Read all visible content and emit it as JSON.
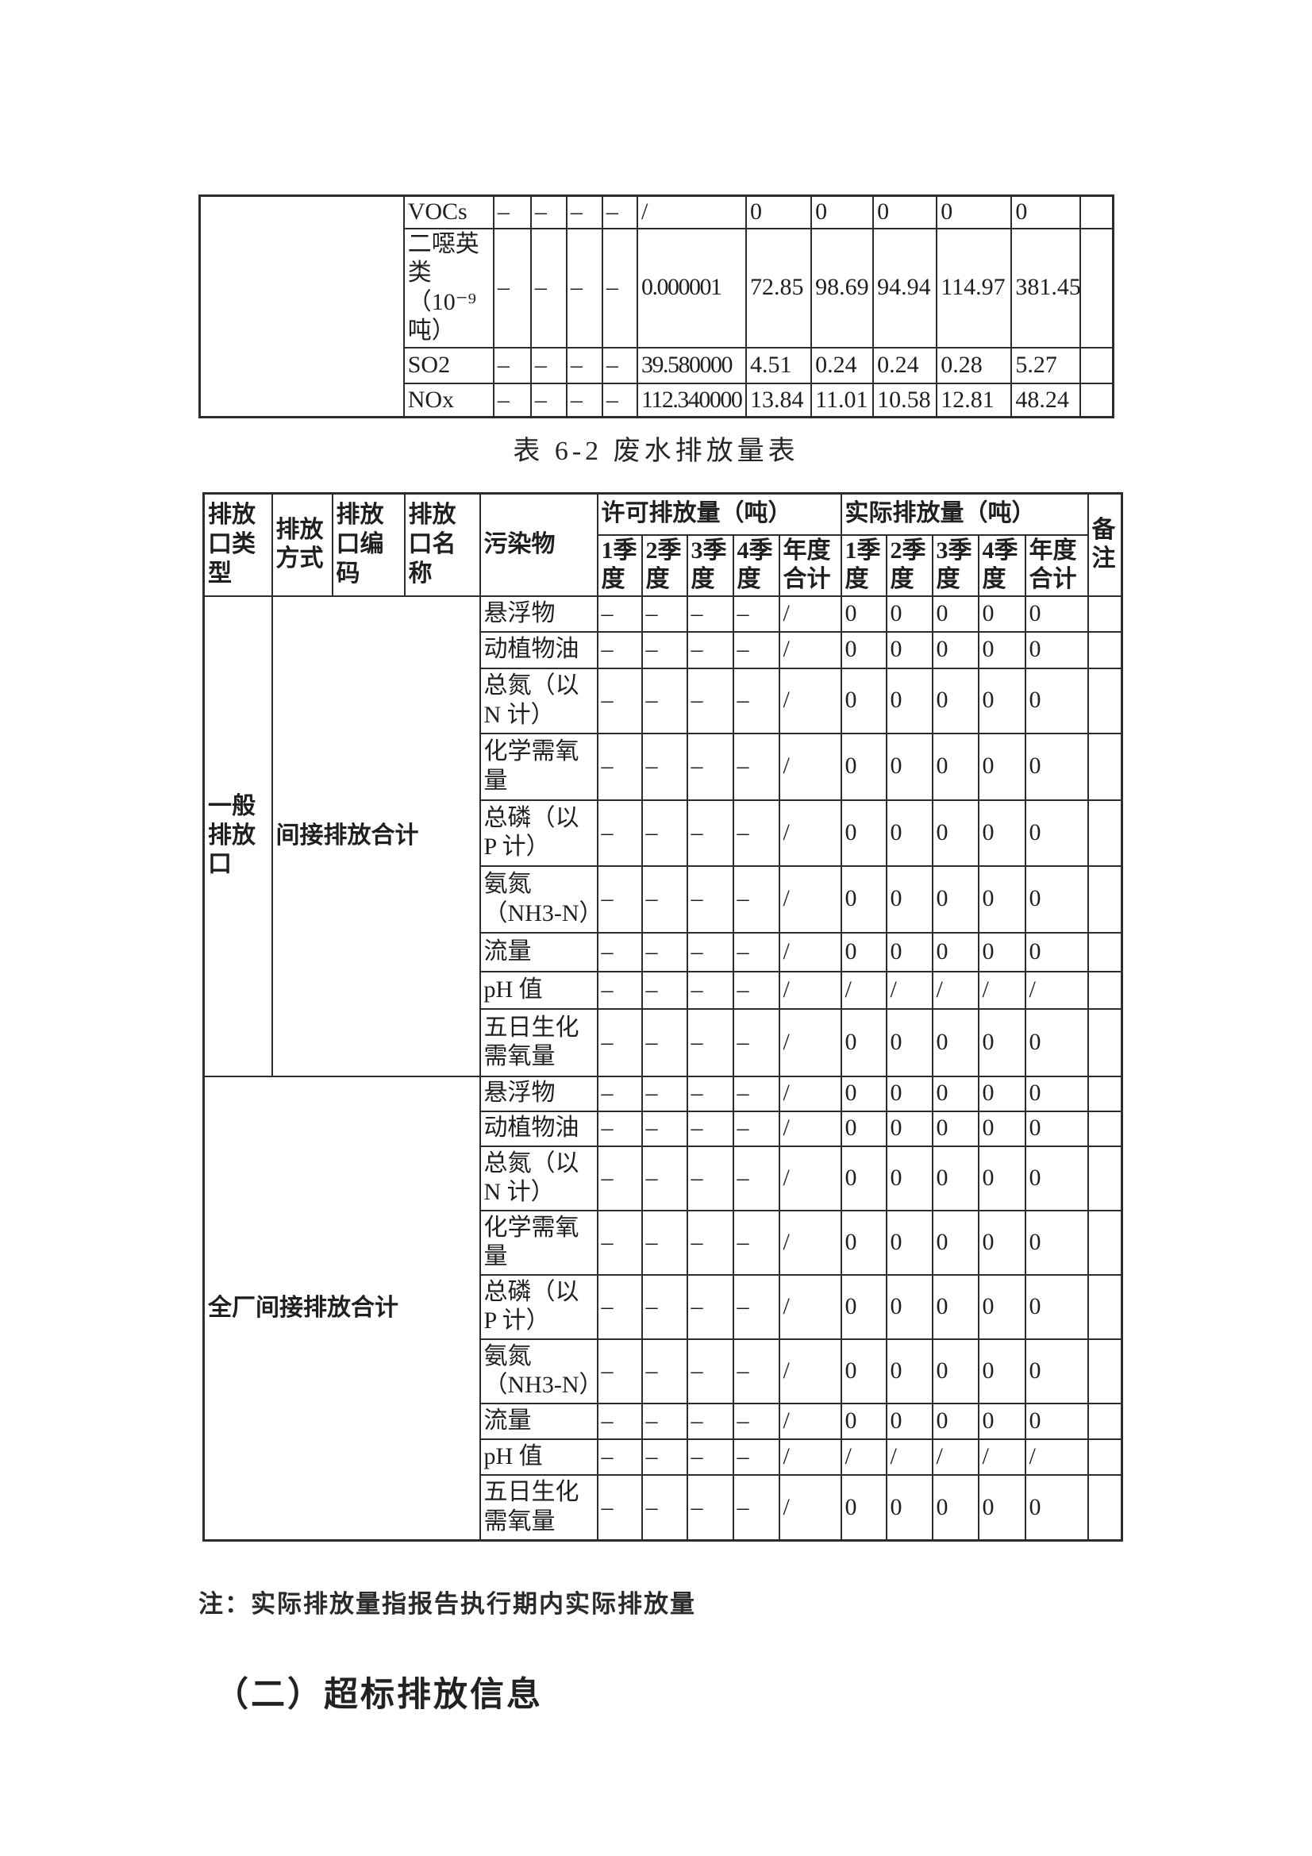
{
  "page": {
    "background_color": "#ffffff",
    "text_color": "#1f1f1f",
    "border_color": "#2d2d2d",
    "table_title": "表 6-2 废水排放量表",
    "note": "注：实际排放量指报告执行期内实际排放量",
    "section_heading": "（二）超标排放信息"
  },
  "top_table": {
    "left_cell": "",
    "rows": [
      {
        "pollutant": "VOCs",
        "permitted": [
          "–",
          "–",
          "–",
          "–",
          "/"
        ],
        "actual": [
          "0",
          "0",
          "0",
          "0",
          "0"
        ],
        "remark": ""
      },
      {
        "pollutant": "二噁英类（10⁻⁹吨）",
        "permitted": [
          "–",
          "–",
          "–",
          "–",
          "0.000001"
        ],
        "actual": [
          "72.85",
          "98.69",
          "94.94",
          "114.97",
          "381.45"
        ],
        "remark": ""
      },
      {
        "pollutant": "SO2",
        "permitted": [
          "–",
          "–",
          "–",
          "–",
          "39.580000"
        ],
        "actual": [
          "4.51",
          "0.24",
          "0.24",
          "0.28",
          "5.27"
        ],
        "remark": ""
      },
      {
        "pollutant": "NOx",
        "permitted": [
          "–",
          "–",
          "–",
          "–",
          "112.340000"
        ],
        "actual": [
          "13.84",
          "11.01",
          "10.58",
          "12.81",
          "48.24"
        ],
        "remark": ""
      }
    ]
  },
  "main_table": {
    "header": {
      "outlet_type": "排放口类型",
      "discharge_mode": "排放方式",
      "outlet_code": "排放口编码",
      "outlet_name": "排放口名称",
      "pollutant": "污染物",
      "permitted_group": "许可排放量（吨）",
      "actual_group": "实际排放量（吨）",
      "remark": "备注",
      "quarters": [
        "1季度",
        "2季度",
        "3季度",
        "4季度",
        "年度合计"
      ]
    },
    "sections": [
      {
        "outlet_type": "一般排放口",
        "discharge_label": "间接排放合计",
        "rows": [
          {
            "pollutant": "悬浮物",
            "permitted": [
              "–",
              "–",
              "–",
              "–",
              "/"
            ],
            "actual": [
              "0",
              "0",
              "0",
              "0",
              "0"
            ],
            "remark": ""
          },
          {
            "pollutant": "动植物油",
            "permitted": [
              "–",
              "–",
              "–",
              "–",
              "/"
            ],
            "actual": [
              "0",
              "0",
              "0",
              "0",
              "0"
            ],
            "remark": ""
          },
          {
            "pollutant": "总氮（以 N 计）",
            "permitted": [
              "–",
              "–",
              "–",
              "–",
              "/"
            ],
            "actual": [
              "0",
              "0",
              "0",
              "0",
              "0"
            ],
            "remark": ""
          },
          {
            "pollutant": "化学需氧量",
            "permitted": [
              "–",
              "–",
              "–",
              "–",
              "/"
            ],
            "actual": [
              "0",
              "0",
              "0",
              "0",
              "0"
            ],
            "remark": ""
          },
          {
            "pollutant": "总磷（以 P 计）",
            "permitted": [
              "–",
              "–",
              "–",
              "–",
              "/"
            ],
            "actual": [
              "0",
              "0",
              "0",
              "0",
              "0"
            ],
            "remark": ""
          },
          {
            "pollutant": "氨氮 （NH3-N）",
            "permitted": [
              "–",
              "–",
              "–",
              "–",
              "/"
            ],
            "actual": [
              "0",
              "0",
              "0",
              "0",
              "0"
            ],
            "remark": ""
          },
          {
            "pollutant": "流量",
            "permitted": [
              "–",
              "–",
              "–",
              "–",
              "/"
            ],
            "actual": [
              "0",
              "0",
              "0",
              "0",
              "0"
            ],
            "remark": ""
          },
          {
            "pollutant": "pH 值",
            "permitted": [
              "–",
              "–",
              "–",
              "–",
              "/"
            ],
            "actual": [
              "/",
              "/",
              "/",
              "/",
              "/"
            ],
            "remark": ""
          },
          {
            "pollutant": "五日生化需氧量",
            "permitted": [
              "–",
              "–",
              "–",
              "–",
              "/"
            ],
            "actual": [
              "0",
              "0",
              "0",
              "0",
              "0"
            ],
            "remark": ""
          }
        ]
      },
      {
        "outlet_type": null,
        "discharge_label": "全厂间接排放合计",
        "rows": [
          {
            "pollutant": "悬浮物",
            "permitted": [
              "–",
              "–",
              "–",
              "–",
              "/"
            ],
            "actual": [
              "0",
              "0",
              "0",
              "0",
              "0"
            ],
            "remark": ""
          },
          {
            "pollutant": "动植物油",
            "permitted": [
              "–",
              "–",
              "–",
              "–",
              "/"
            ],
            "actual": [
              "0",
              "0",
              "0",
              "0",
              "0"
            ],
            "remark": ""
          },
          {
            "pollutant": "总氮（以 N 计）",
            "permitted": [
              "–",
              "–",
              "–",
              "–",
              "/"
            ],
            "actual": [
              "0",
              "0",
              "0",
              "0",
              "0"
            ],
            "remark": ""
          },
          {
            "pollutant": "化学需氧量",
            "permitted": [
              "–",
              "–",
              "–",
              "–",
              "/"
            ],
            "actual": [
              "0",
              "0",
              "0",
              "0",
              "0"
            ],
            "remark": ""
          },
          {
            "pollutant": "总磷（以 P 计）",
            "permitted": [
              "–",
              "–",
              "–",
              "–",
              "/"
            ],
            "actual": [
              "0",
              "0",
              "0",
              "0",
              "0"
            ],
            "remark": ""
          },
          {
            "pollutant": "氨氮 （NH3-N）",
            "permitted": [
              "–",
              "–",
              "–",
              "–",
              "/"
            ],
            "actual": [
              "0",
              "0",
              "0",
              "0",
              "0"
            ],
            "remark": ""
          },
          {
            "pollutant": "流量",
            "permitted": [
              "–",
              "–",
              "–",
              "–",
              "/"
            ],
            "actual": [
              "0",
              "0",
              "0",
              "0",
              "0"
            ],
            "remark": ""
          },
          {
            "pollutant": "pH 值",
            "permitted": [
              "–",
              "–",
              "–",
              "–",
              "/"
            ],
            "actual": [
              "/",
              "/",
              "/",
              "/",
              "/"
            ],
            "remark": ""
          },
          {
            "pollutant": "五日生化需氧量",
            "permitted": [
              "–",
              "–",
              "–",
              "–",
              "/"
            ],
            "actual": [
              "0",
              "0",
              "0",
              "0",
              "0"
            ],
            "remark": ""
          }
        ]
      }
    ]
  }
}
